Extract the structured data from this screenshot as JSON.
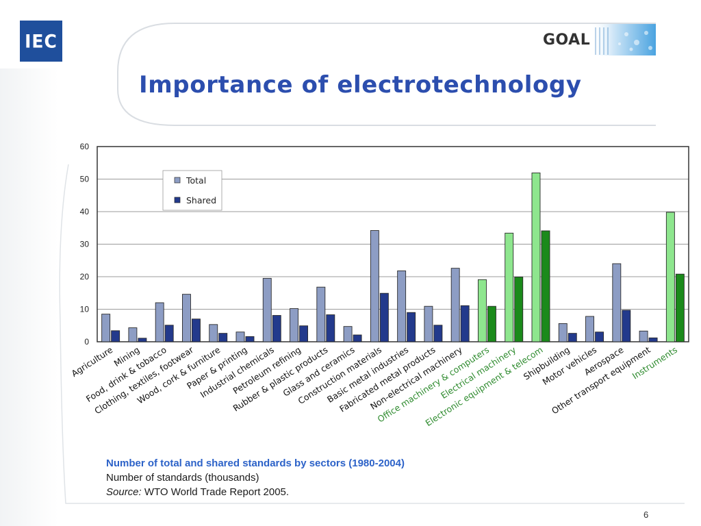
{
  "header": {
    "logo_text": "IEC",
    "goal_label": "GOAL",
    "title": "Importance of electrotechnology"
  },
  "colors": {
    "title": "#2c4eae",
    "total": "#8d9dc4",
    "shared": "#233a8c",
    "highlight_total": "#8ee68e",
    "highlight_shared": "#1b8a1b",
    "highlight_label": "#2e8b2e"
  },
  "chart_data": {
    "type": "bar",
    "title": "Number of total and shared standards by sectors (1980-2004)",
    "ylabel": "Number of standards (thousands)",
    "xlabel": "",
    "ylim": [
      0,
      60
    ],
    "yticks": [
      0,
      10,
      20,
      30,
      40,
      50,
      60
    ],
    "grid": true,
    "legend_position": "top-left",
    "categories": [
      "Agriculture",
      "Mining",
      "Food, drink & tobacco",
      "Clothing, textiles, footwear",
      "Wood, cork & furniture",
      "Paper & printing",
      "Industrial chemicals",
      "Petroleum refining",
      "Rubber & plastic products",
      "Glass and ceramics",
      "Construction materials",
      "Basic metal industries",
      "Fabricated metal products",
      "Non-electrical machinery",
      "Office machinery & computers",
      "Electrical machinery",
      "Electronic equipment & telecom",
      "Shipbuilding",
      "Motor vehicles",
      "Aerospace",
      "Other transport equipment",
      "Instruments"
    ],
    "highlighted": [
      "Office machinery & computers",
      "Electrical machinery",
      "Electronic equipment & telecom",
      "Instruments"
    ],
    "series": [
      {
        "name": "Total",
        "values": [
          8.5,
          4.3,
          12,
          14.6,
          5.3,
          3,
          19.5,
          10.2,
          16.8,
          4.7,
          34.2,
          21.8,
          10.9,
          22.6,
          19.1,
          33.4,
          51.9,
          5.6,
          7.8,
          24,
          3.3,
          39.8
        ]
      },
      {
        "name": "Shared",
        "values": [
          3.4,
          1.1,
          5.1,
          7,
          2.6,
          1.6,
          8.1,
          4.9,
          8.3,
          2.1,
          14.9,
          9,
          5.1,
          11.1,
          10.9,
          19.9,
          34.1,
          2.6,
          3,
          9.7,
          1.2,
          20.8
        ]
      }
    ]
  },
  "caption": {
    "title": "Number of total and shared standards by sectors (1980-2004)",
    "units": "Number of standards (thousands)",
    "source_label": "Source:",
    "source_text": " WTO World Trade Report 2005."
  },
  "page_number": "6"
}
